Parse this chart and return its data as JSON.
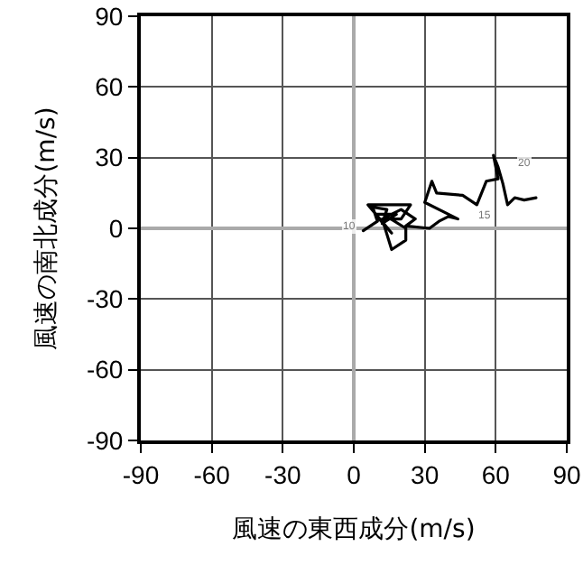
{
  "chart_data": {
    "type": "line",
    "xlabel": "風速の東西成分(m/s)",
    "ylabel": "風速の南北成分(m/s)",
    "x": [
      4,
      10,
      8,
      14,
      12,
      18,
      9,
      16,
      6,
      24,
      20,
      12,
      16,
      22,
      22,
      14,
      20,
      26,
      22,
      32,
      36,
      40,
      44,
      40,
      30,
      33,
      35,
      46,
      52,
      56,
      61,
      59,
      61,
      63,
      65,
      68,
      72,
      77
    ],
    "series": [
      {
        "color": "#000000",
        "values": [
          -1,
          3,
          9,
          8,
          2,
          6,
          6,
          -2,
          10,
          10,
          4,
          4,
          -9,
          -5,
          0,
          5,
          8,
          4,
          1,
          0,
          3,
          5,
          4,
          6,
          11,
          20,
          15,
          14,
          10,
          20,
          21,
          31,
          26,
          19,
          10,
          13,
          12,
          13
        ]
      }
    ],
    "annotations": [
      {
        "text": "10",
        "x": 4,
        "y": -1
      },
      {
        "text": "15",
        "x": 44,
        "y": 4
      },
      {
        "text": "20",
        "x": 61,
        "y": 26
      }
    ],
    "xlim": [
      -90,
      90
    ],
    "ylim": [
      -90,
      90
    ],
    "xticks": [
      -90,
      -60,
      -30,
      0,
      30,
      60,
      90
    ],
    "yticks": [
      -90,
      -60,
      -30,
      0,
      30,
      60,
      90
    ],
    "grid": true,
    "marker": "none",
    "line_style": "solid"
  }
}
